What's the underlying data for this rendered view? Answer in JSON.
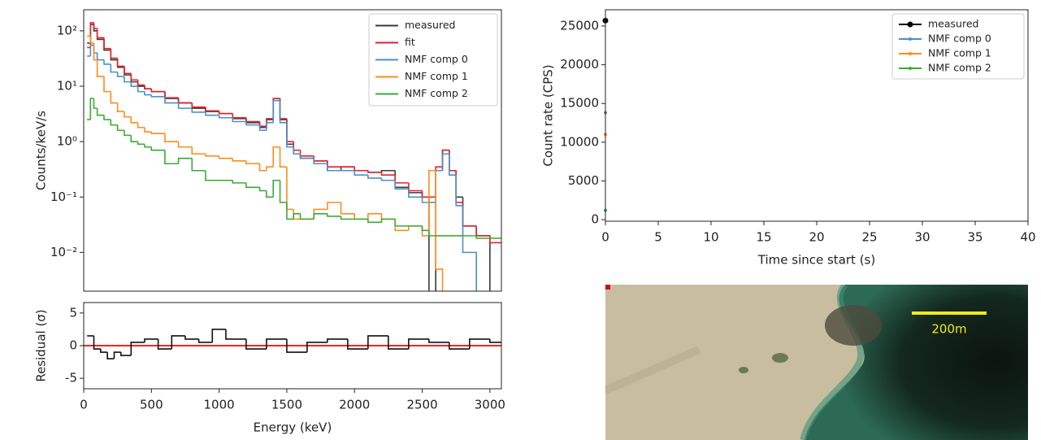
{
  "chart_data": [
    {
      "type": "step",
      "ylabel": "Counts/keV/s",
      "yscale": "log",
      "xlim": [
        0,
        3085
      ],
      "ylim": [
        0.002,
        240
      ],
      "yticks": [
        {
          "value": 0.01,
          "label": "10⁻²"
        },
        {
          "value": 0.1,
          "label": "10⁻¹"
        },
        {
          "value": 1,
          "label": "10⁰"
        },
        {
          "value": 10,
          "label": "10¹"
        },
        {
          "value": 100,
          "label": "10²"
        }
      ],
      "legend": "upper right",
      "x": [
        25,
        50,
        75,
        100,
        150,
        200,
        250,
        300,
        350,
        400,
        450,
        500,
        600,
        700,
        800,
        900,
        1000,
        1100,
        1200,
        1300,
        1350,
        1400,
        1450,
        1500,
        1550,
        1600,
        1700,
        1800,
        1900,
        2000,
        2100,
        2200,
        2300,
        2400,
        2500,
        2550,
        2600,
        2650,
        2700,
        2750,
        2800,
        2900,
        3000
      ],
      "series": [
        {
          "name": "measured",
          "color": "#3a3a3a",
          "values": [
            60,
            130,
            100,
            70,
            45,
            30,
            22,
            16,
            12,
            10,
            9,
            8,
            6,
            5,
            4,
            3.5,
            3.2,
            2.6,
            2.2,
            1.8,
            2.5,
            6,
            2.5,
            0.9,
            0.6,
            0.5,
            0.45,
            0.3,
            0.35,
            0.3,
            0.28,
            0.3,
            0.15,
            0.12,
            0.1,
            null,
            0.3,
            0.7,
            0.3,
            0.1,
            0.03,
            0.02,
            null
          ]
        },
        {
          "name": "fit",
          "color": "#e8202a",
          "values": [
            50,
            140,
            110,
            75,
            48,
            32,
            23,
            17,
            13,
            10.5,
            9,
            8,
            6.2,
            5,
            4.2,
            3.6,
            3.2,
            2.7,
            2.3,
            1.9,
            2.6,
            6,
            2.6,
            1,
            0.7,
            0.55,
            0.45,
            0.35,
            0.35,
            0.3,
            0.28,
            0.25,
            0.18,
            0.13,
            0.1,
            0.1,
            0.35,
            0.7,
            0.3,
            0.08,
            0.03,
            0.02,
            0.015
          ]
        },
        {
          "name": "NMF comp 0",
          "color": "#4a90c9",
          "values": [
            35,
            55,
            40,
            30,
            25,
            18,
            15,
            12,
            10,
            8,
            7,
            6.5,
            5,
            4,
            3.4,
            3,
            2.7,
            2.3,
            2,
            1.6,
            2.2,
            5.5,
            2.2,
            0.8,
            0.6,
            0.5,
            0.4,
            0.3,
            0.3,
            0.25,
            0.22,
            0.2,
            0.14,
            0.1,
            0.08,
            0.08,
            0.3,
            0.6,
            0.25,
            0.07,
            0.01,
            null,
            null
          ]
        },
        {
          "name": "NMF comp 1",
          "color": "#ff8c1a",
          "values": [
            80,
            60,
            30,
            15,
            8,
            5,
            3.5,
            2.8,
            2.2,
            1.8,
            1.5,
            1.4,
            1,
            0.8,
            0.6,
            0.55,
            0.5,
            0.45,
            0.4,
            0.3,
            0.35,
            0.8,
            0.35,
            0.06,
            0.04,
            0.04,
            0.06,
            0.08,
            0.05,
            0.04,
            0.05,
            0.04,
            0.025,
            0.03,
            0.02,
            0.3,
            0.005,
            null,
            null,
            null,
            null,
            null,
            null
          ]
        },
        {
          "name": "NMF comp 2",
          "color": "#3aaa35",
          "values": [
            2.5,
            6,
            4,
            3,
            2.5,
            2,
            1.6,
            1.3,
            1,
            0.9,
            0.8,
            0.7,
            0.4,
            0.5,
            0.3,
            0.2,
            0.2,
            0.18,
            0.15,
            0.13,
            0.1,
            0.2,
            0.08,
            0.04,
            0.05,
            0.04,
            0.05,
            0.045,
            0.04,
            0.04,
            0.035,
            0.04,
            0.03,
            0.03,
            0.025,
            0.02,
            0.02,
            0.02,
            0.02,
            0.02,
            0.02,
            0.018,
            0.018
          ]
        }
      ]
    },
    {
      "type": "step",
      "xlabel": "Energy (keV)",
      "ylabel": "Residual (σ)",
      "xlim": [
        0,
        3085
      ],
      "ylim": [
        -6.6,
        6.6
      ],
      "xticks": [
        0,
        500,
        1000,
        1500,
        2000,
        2500,
        3000
      ],
      "yticks": [
        -5,
        0,
        5
      ],
      "hline": {
        "value": 0,
        "color": "#ff2020"
      },
      "x": [
        25,
        75,
        125,
        175,
        225,
        275,
        350,
        450,
        550,
        650,
        750,
        850,
        950,
        1050,
        1200,
        1350,
        1500,
        1650,
        1800,
        1950,
        2100,
        2250,
        2400,
        2550,
        2700,
        2850,
        3000
      ],
      "series": [
        {
          "color": "#111111",
          "values": [
            1.5,
            -0.5,
            -1,
            -2,
            -1,
            -1.5,
            0.5,
            1,
            -0.5,
            1.5,
            1,
            0.5,
            2.5,
            1,
            -0.5,
            1,
            -1,
            0.5,
            1,
            -0.5,
            1.5,
            -0.5,
            1,
            0.5,
            -0.5,
            1,
            0.5
          ]
        }
      ]
    },
    {
      "type": "line",
      "xlabel": "Time since start (s)",
      "ylabel": "Count rate (CPS)",
      "xlim": [
        0,
        40
      ],
      "ylim": [
        -200,
        27100
      ],
      "xticks": [
        0,
        5,
        10,
        15,
        20,
        25,
        30,
        35,
        40
      ],
      "yticks": [
        0,
        5000,
        10000,
        15000,
        20000,
        25000
      ],
      "legend": "upper right",
      "x": [
        0
      ],
      "series": [
        {
          "name": "measured",
          "color": "#000000",
          "values": [
            25700
          ]
        },
        {
          "name": "NMF comp 0",
          "color": "#4a90c9",
          "values": [
            13800
          ]
        },
        {
          "name": "NMF comp 1",
          "color": "#ff8c1a",
          "values": [
            11000
          ]
        },
        {
          "name": "NMF comp 2",
          "color": "#3aaa35",
          "values": [
            1200
          ]
        }
      ]
    }
  ],
  "map": {
    "scale_label": "200m"
  }
}
